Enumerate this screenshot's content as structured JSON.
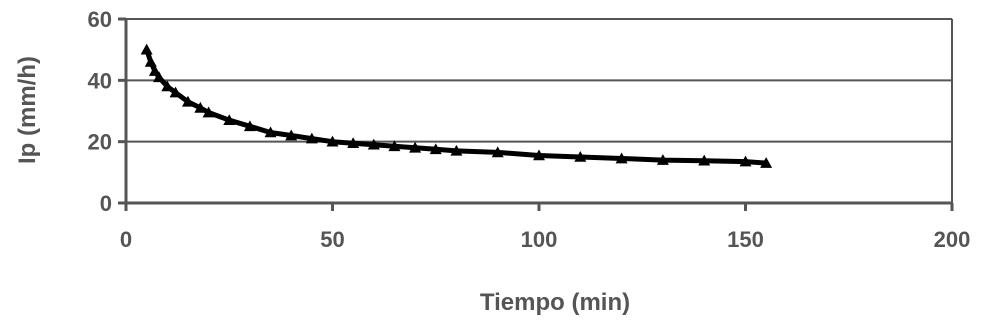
{
  "chart_data": {
    "type": "line",
    "title": "",
    "xlabel": "Tiempo (min)",
    "ylabel": "Ip  (mm/h)",
    "xlim": [
      0,
      200
    ],
    "ylim": [
      0,
      60
    ],
    "x_ticks": [
      0,
      50,
      100,
      150,
      200
    ],
    "y_ticks": [
      0,
      20,
      40,
      60
    ],
    "x_tick_labels": [
      "0",
      "50",
      "100",
      "150",
      "200"
    ],
    "y_tick_labels": [
      "0",
      "20",
      "40",
      "60"
    ],
    "grid": "horizontal",
    "legend": "none",
    "series": [
      {
        "marker": "triangle",
        "color": "#000000",
        "x": [
          5,
          6,
          7,
          8,
          10,
          12,
          15,
          18,
          20,
          25,
          30,
          35,
          40,
          45,
          50,
          55,
          60,
          65,
          70,
          75,
          80,
          90,
          100,
          110,
          120,
          130,
          140,
          150,
          155
        ],
        "y": [
          50,
          46,
          43,
          41,
          38,
          36,
          33,
          31,
          29.5,
          27,
          25,
          23,
          22,
          21,
          20,
          19.5,
          19,
          18.5,
          18,
          17.5,
          17,
          16.5,
          15.5,
          15,
          14.5,
          14,
          13.8,
          13.5,
          13
        ]
      }
    ]
  }
}
